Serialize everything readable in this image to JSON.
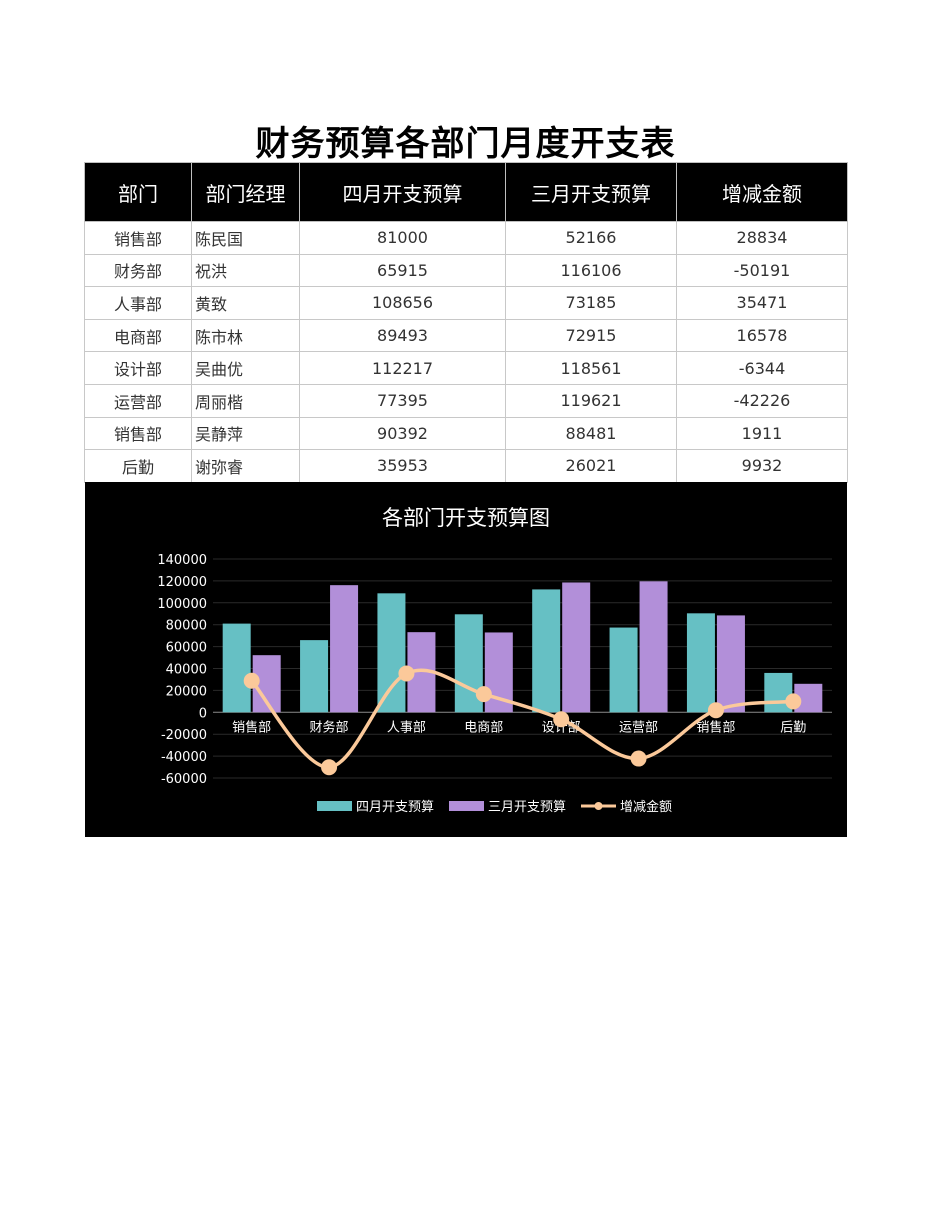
{
  "title": "财务预算各部门月度开支表",
  "table": {
    "headers": [
      "部门",
      "部门经理",
      "四月开支预算",
      "三月开支预算",
      "增减金额"
    ],
    "rows": [
      {
        "dept": "销售部",
        "manager": "陈民国",
        "april": "81000",
        "march": "52166",
        "change": "28834"
      },
      {
        "dept": "财务部",
        "manager": "祝洪",
        "april": "65915",
        "march": "116106",
        "change": "-50191"
      },
      {
        "dept": "人事部",
        "manager": "黄致",
        "april": "108656",
        "march": "73185",
        "change": "35471"
      },
      {
        "dept": "电商部",
        "manager": "陈市林",
        "april": "89493",
        "march": "72915",
        "change": "16578"
      },
      {
        "dept": "设计部",
        "manager": "吴曲优",
        "april": "112217",
        "march": "118561",
        "change": "-6344"
      },
      {
        "dept": "运营部",
        "manager": "周丽楷",
        "april": "77395",
        "march": "119621",
        "change": "-42226"
      },
      {
        "dept": "销售部",
        "manager": "吴静萍",
        "april": "90392",
        "march": "88481",
        "change": "1911"
      },
      {
        "dept": "后勤",
        "manager": "谢弥睿",
        "april": "35953",
        "march": "26021",
        "change": "9932"
      }
    ]
  },
  "chart_data": {
    "type": "bar",
    "title": "各部门开支预算图",
    "categories": [
      "销售部",
      "财务部",
      "人事部",
      "电商部",
      "设计部",
      "运营部",
      "销售部",
      "后勤"
    ],
    "series": [
      {
        "name": "四月开支预算",
        "kind": "bar",
        "color": "#66c0c4",
        "values": [
          81000,
          65915,
          108656,
          89493,
          112217,
          77395,
          90392,
          35953
        ]
      },
      {
        "name": "三月开支预算",
        "kind": "bar",
        "color": "#b28fd9",
        "values": [
          52166,
          116106,
          73185,
          72915,
          118561,
          119621,
          88481,
          26021
        ]
      },
      {
        "name": "增减金额",
        "kind": "line",
        "color": "#fbc99a",
        "values": [
          28834,
          -50191,
          35471,
          16578,
          -6344,
          -42226,
          1911,
          9932
        ]
      }
    ],
    "ylim": [
      -60000,
      140000
    ],
    "yticks": [
      "140000",
      "120000",
      "100000",
      "80000",
      "60000",
      "40000",
      "20000",
      "0",
      "-20000",
      "-40000",
      "-60000"
    ],
    "legend": "bottom",
    "grid": true
  }
}
